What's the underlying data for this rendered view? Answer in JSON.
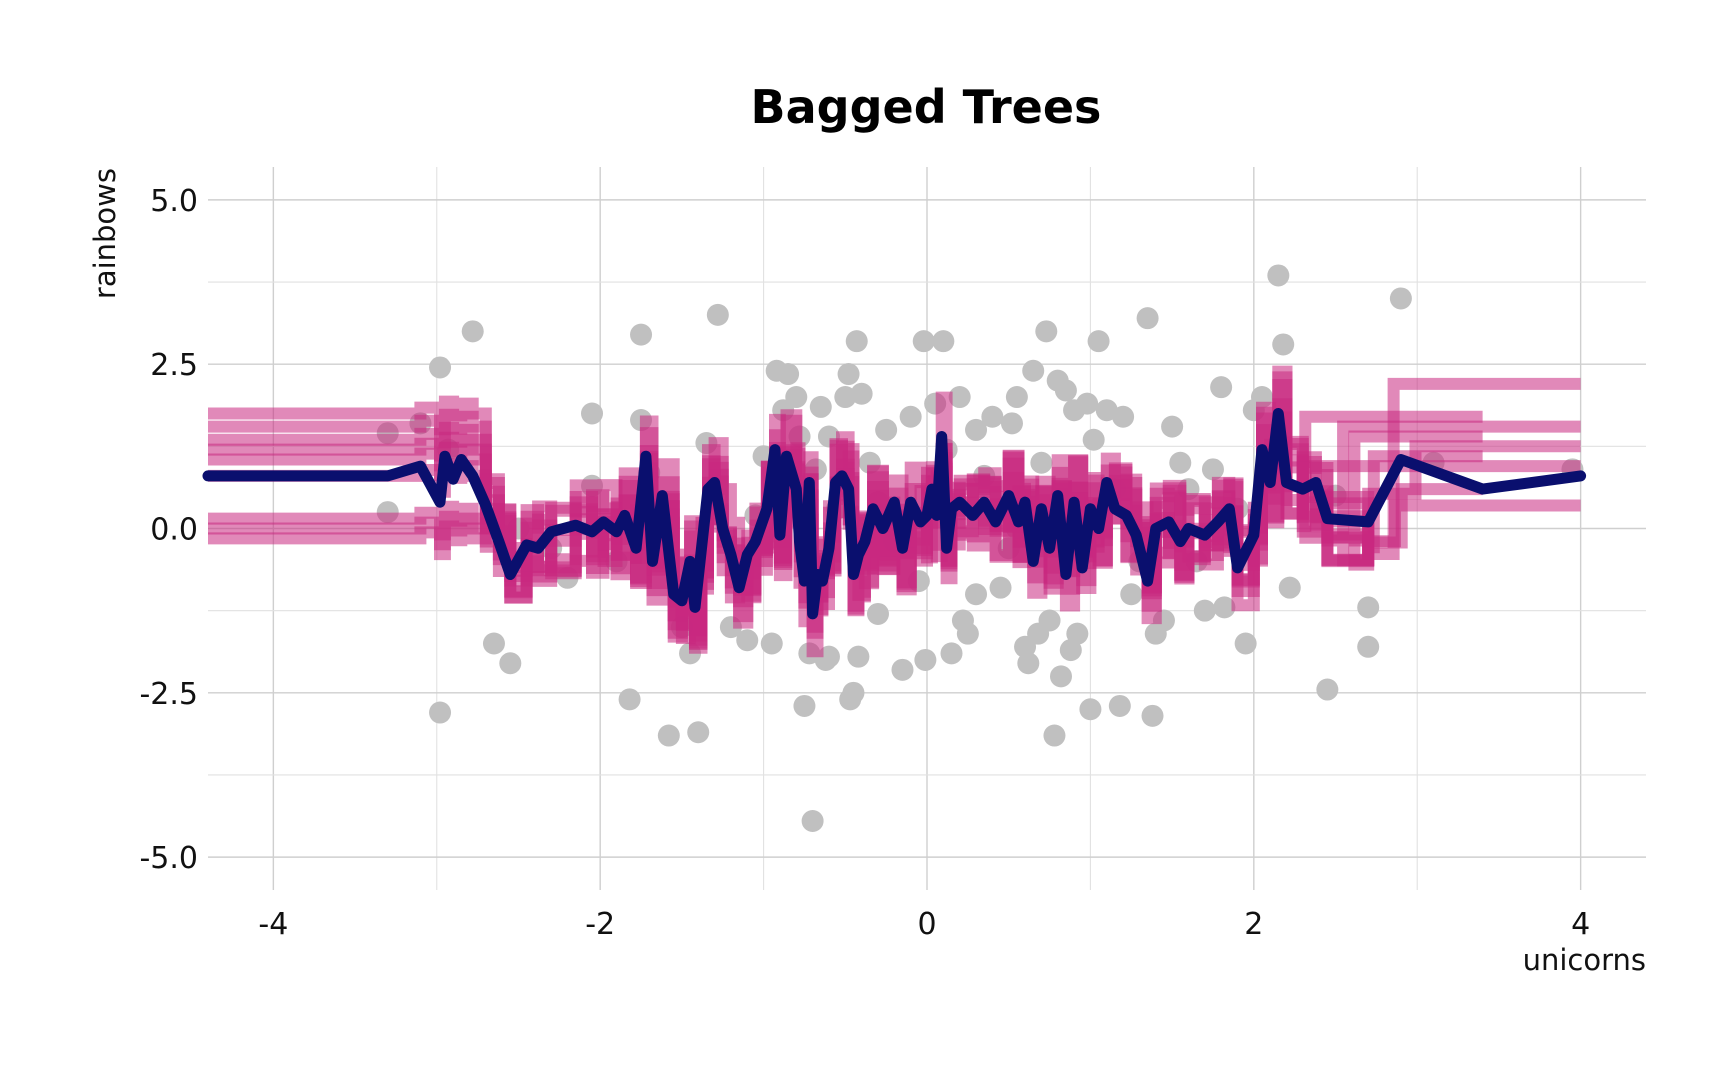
{
  "chart_data": {
    "type": "scatter",
    "title": "Bagged Trees",
    "xlabel": "unicorns",
    "ylabel": "rainbows",
    "xlim": [
      -4.4,
      4.4
    ],
    "ylim": [
      -5.5,
      5.5
    ],
    "x_ticks": [
      -4,
      -2,
      0,
      2,
      4
    ],
    "x_tick_labels": [
      "-4",
      "-2",
      "0",
      "2",
      "4"
    ],
    "y_ticks": [
      5.0,
      2.5,
      0.0,
      -2.5,
      -5.0
    ],
    "y_tick_labels": [
      "5.0",
      "2.5",
      "0.0",
      "-2.5",
      "-5.0"
    ],
    "grid": true,
    "colors": {
      "points": "#c0c0c0",
      "trees": "#c8287f",
      "average": "#0a0f6e"
    },
    "points": [
      [
        -3.3,
        1.45
      ],
      [
        -3.3,
        0.25
      ],
      [
        -3.1,
        1.6
      ],
      [
        -2.98,
        2.45
      ],
      [
        -2.98,
        -2.8
      ],
      [
        -2.93,
        1.2
      ],
      [
        -2.78,
        3.0
      ],
      [
        -2.65,
        -1.75
      ],
      [
        -2.55,
        -2.05
      ],
      [
        -2.5,
        0.0
      ],
      [
        -2.3,
        -0.3
      ],
      [
        -2.2,
        -0.75
      ],
      [
        -2.05,
        1.75
      ],
      [
        -2.05,
        0.65
      ],
      [
        -1.9,
        -0.5
      ],
      [
        -1.82,
        -2.6
      ],
      [
        -1.75,
        2.95
      ],
      [
        -1.75,
        1.65
      ],
      [
        -1.6,
        -0.1
      ],
      [
        -1.58,
        -3.15
      ],
      [
        -1.5,
        -1.5
      ],
      [
        -1.45,
        -1.9
      ],
      [
        -1.4,
        -3.1
      ],
      [
        -1.35,
        1.3
      ],
      [
        -1.28,
        3.25
      ],
      [
        -1.2,
        -1.5
      ],
      [
        -1.15,
        -0.5
      ],
      [
        -1.1,
        -1.7
      ],
      [
        -1.05,
        0.2
      ],
      [
        -1.0,
        1.1
      ],
      [
        -0.95,
        -1.75
      ],
      [
        -0.92,
        2.4
      ],
      [
        -0.88,
        1.8
      ],
      [
        -0.85,
        2.35
      ],
      [
        -0.8,
        2.0
      ],
      [
        -0.78,
        1.4
      ],
      [
        -0.75,
        -2.7
      ],
      [
        -0.72,
        -1.9
      ],
      [
        -0.7,
        -4.45
      ],
      [
        -0.68,
        0.9
      ],
      [
        -0.65,
        1.85
      ],
      [
        -0.62,
        -2.0
      ],
      [
        -0.6,
        -1.95
      ],
      [
        -0.55,
        0.3
      ],
      [
        -0.5,
        2.0
      ],
      [
        -0.48,
        2.35
      ],
      [
        -0.47,
        -2.6
      ],
      [
        -0.45,
        -2.5
      ],
      [
        -0.43,
        2.85
      ],
      [
        -0.42,
        -1.95
      ],
      [
        -0.4,
        2.05
      ],
      [
        -0.35,
        1.0
      ],
      [
        -0.3,
        0.4
      ],
      [
        -0.25,
        1.5
      ],
      [
        -0.2,
        -0.2
      ],
      [
        -0.15,
        -2.15
      ],
      [
        -0.1,
        1.7
      ],
      [
        -0.05,
        -0.8
      ],
      [
        -0.02,
        2.85
      ],
      [
        -0.01,
        -2.0
      ],
      [
        0.05,
        1.9
      ],
      [
        0.1,
        2.85
      ],
      [
        0.12,
        1.2
      ],
      [
        0.15,
        -1.9
      ],
      [
        0.2,
        2.0
      ],
      [
        0.22,
        -1.4
      ],
      [
        0.25,
        -1.6
      ],
      [
        0.3,
        1.5
      ],
      [
        0.35,
        0.8
      ],
      [
        0.4,
        1.7
      ],
      [
        0.45,
        -0.9
      ],
      [
        0.5,
        -0.3
      ],
      [
        0.52,
        1.6
      ],
      [
        0.55,
        2.0
      ],
      [
        0.6,
        -1.8
      ],
      [
        0.62,
        -2.05
      ],
      [
        0.65,
        2.4
      ],
      [
        0.68,
        -1.6
      ],
      [
        0.7,
        1.0
      ],
      [
        0.73,
        3.0
      ],
      [
        0.75,
        -1.4
      ],
      [
        0.78,
        -3.15
      ],
      [
        0.8,
        2.25
      ],
      [
        0.82,
        -2.25
      ],
      [
        0.85,
        2.1
      ],
      [
        0.88,
        -1.85
      ],
      [
        0.9,
        1.8
      ],
      [
        0.92,
        -1.6
      ],
      [
        0.95,
        -0.4
      ],
      [
        0.98,
        1.9
      ],
      [
        1.0,
        -2.75
      ],
      [
        1.02,
        1.35
      ],
      [
        1.05,
        2.85
      ],
      [
        1.1,
        1.8
      ],
      [
        1.15,
        0.6
      ],
      [
        1.18,
        -2.7
      ],
      [
        1.2,
        1.7
      ],
      [
        1.25,
        -1.0
      ],
      [
        1.3,
        -0.5
      ],
      [
        1.35,
        3.2
      ],
      [
        1.38,
        -2.85
      ],
      [
        1.45,
        -1.4
      ],
      [
        1.5,
        1.55
      ],
      [
        1.55,
        1.0
      ],
      [
        1.6,
        0.6
      ],
      [
        1.65,
        -0.5
      ],
      [
        1.7,
        -1.25
      ],
      [
        1.75,
        0.9
      ],
      [
        1.8,
        2.15
      ],
      [
        1.82,
        -1.2
      ],
      [
        1.9,
        0.3
      ],
      [
        1.95,
        -1.75
      ],
      [
        2.0,
        1.8
      ],
      [
        2.05,
        2.0
      ],
      [
        2.15,
        3.85
      ],
      [
        2.18,
        2.8
      ],
      [
        2.22,
        -0.9
      ],
      [
        2.45,
        -2.45
      ],
      [
        2.7,
        -1.2
      ],
      [
        2.9,
        3.5
      ],
      [
        2.7,
        -1.8
      ],
      [
        2.5,
        0.5
      ],
      [
        3.1,
        1.0
      ],
      [
        3.95,
        0.9
      ],
      [
        -0.3,
        -1.3
      ],
      [
        -1.7,
        0.85
      ],
      [
        0.55,
        0.0
      ],
      [
        1.4,
        -1.6
      ],
      [
        -0.6,
        1.4
      ],
      [
        0.3,
        -1.0
      ]
    ],
    "tree_levels": [
      1.75,
      1.55,
      1.35,
      1.2,
      1.05,
      0.8,
      0.15,
      0.0,
      -0.15
    ],
    "tree_right_levels": [
      2.2,
      1.7,
      1.55,
      1.4,
      1.25,
      1.1,
      0.95,
      0.6,
      0.35,
      0.15,
      -0.2,
      -0.65,
      -0.85
    ],
    "average_line": [
      [
        -4.4,
        0.8
      ],
      [
        -3.3,
        0.8
      ],
      [
        -3.1,
        0.95
      ],
      [
        -2.98,
        0.4
      ],
      [
        -2.95,
        1.1
      ],
      [
        -2.9,
        0.75
      ],
      [
        -2.85,
        1.05
      ],
      [
        -2.78,
        0.8
      ],
      [
        -2.7,
        0.35
      ],
      [
        -2.62,
        -0.2
      ],
      [
        -2.55,
        -0.7
      ],
      [
        -2.45,
        -0.25
      ],
      [
        -2.38,
        -0.3
      ],
      [
        -2.3,
        -0.05
      ],
      [
        -2.15,
        0.05
      ],
      [
        -2.05,
        -0.05
      ],
      [
        -1.98,
        0.1
      ],
      [
        -1.9,
        -0.05
      ],
      [
        -1.85,
        0.2
      ],
      [
        -1.78,
        -0.3
      ],
      [
        -1.72,
        1.1
      ],
      [
        -1.68,
        -0.5
      ],
      [
        -1.62,
        0.5
      ],
      [
        -1.55,
        -1.0
      ],
      [
        -1.5,
        -1.1
      ],
      [
        -1.45,
        -0.5
      ],
      [
        -1.42,
        -1.2
      ],
      [
        -1.38,
        -0.3
      ],
      [
        -1.34,
        0.6
      ],
      [
        -1.3,
        0.7
      ],
      [
        -1.25,
        0.0
      ],
      [
        -1.2,
        -0.4
      ],
      [
        -1.15,
        -0.9
      ],
      [
        -1.1,
        -0.4
      ],
      [
        -1.05,
        -0.2
      ],
      [
        -0.98,
        0.3
      ],
      [
        -0.93,
        1.2
      ],
      [
        -0.9,
        -0.1
      ],
      [
        -0.86,
        1.1
      ],
      [
        -0.8,
        0.6
      ],
      [
        -0.78,
        -0.2
      ],
      [
        -0.75,
        -0.8
      ],
      [
        -0.72,
        0.7
      ],
      [
        -0.7,
        -1.3
      ],
      [
        -0.67,
        -0.7
      ],
      [
        -0.64,
        -0.8
      ],
      [
        -0.6,
        -0.3
      ],
      [
        -0.56,
        0.7
      ],
      [
        -0.52,
        0.8
      ],
      [
        -0.48,
        0.6
      ],
      [
        -0.45,
        -0.7
      ],
      [
        -0.42,
        -0.4
      ],
      [
        -0.38,
        -0.2
      ],
      [
        -0.33,
        0.3
      ],
      [
        -0.27,
        0.0
      ],
      [
        -0.2,
        0.4
      ],
      [
        -0.15,
        -0.3
      ],
      [
        -0.1,
        0.4
      ],
      [
        -0.04,
        0.1
      ],
      [
        0.0,
        0.2
      ],
      [
        0.03,
        0.6
      ],
      [
        0.06,
        0.2
      ],
      [
        0.09,
        1.4
      ],
      [
        0.12,
        -0.3
      ],
      [
        0.15,
        0.3
      ],
      [
        0.2,
        0.4
      ],
      [
        0.28,
        0.2
      ],
      [
        0.35,
        0.4
      ],
      [
        0.42,
        0.1
      ],
      [
        0.5,
        0.5
      ],
      [
        0.56,
        0.1
      ],
      [
        0.6,
        0.4
      ],
      [
        0.65,
        -0.5
      ],
      [
        0.7,
        0.3
      ],
      [
        0.75,
        -0.3
      ],
      [
        0.8,
        0.5
      ],
      [
        0.85,
        -0.7
      ],
      [
        0.9,
        0.4
      ],
      [
        0.95,
        -0.6
      ],
      [
        1.0,
        0.3
      ],
      [
        1.05,
        0.0
      ],
      [
        1.1,
        0.7
      ],
      [
        1.15,
        0.3
      ],
      [
        1.22,
        0.2
      ],
      [
        1.28,
        -0.1
      ],
      [
        1.35,
        -0.8
      ],
      [
        1.4,
        0.0
      ],
      [
        1.48,
        0.1
      ],
      [
        1.55,
        -0.2
      ],
      [
        1.6,
        0.0
      ],
      [
        1.7,
        -0.1
      ],
      [
        1.78,
        0.1
      ],
      [
        1.85,
        0.3
      ],
      [
        1.9,
        -0.6
      ],
      [
        2.0,
        -0.1
      ],
      [
        2.05,
        1.2
      ],
      [
        2.1,
        0.7
      ],
      [
        2.15,
        1.75
      ],
      [
        2.2,
        0.7
      ],
      [
        2.3,
        0.6
      ],
      [
        2.38,
        0.7
      ],
      [
        2.45,
        0.15
      ],
      [
        2.7,
        0.1
      ],
      [
        2.9,
        1.05
      ],
      [
        3.4,
        0.6
      ],
      [
        4.0,
        0.8
      ]
    ]
  }
}
